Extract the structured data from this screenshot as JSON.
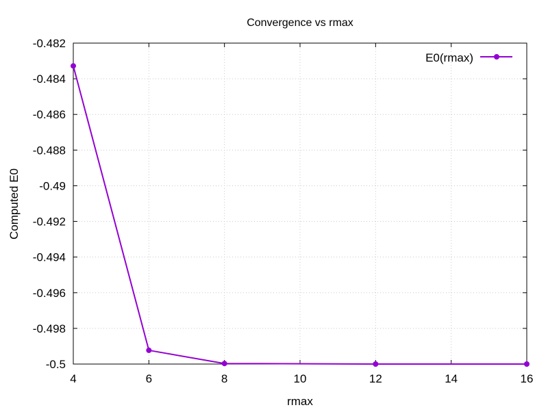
{
  "chart_data": {
    "type": "line",
    "title": "Convergence vs rmax",
    "xlabel": "rmax",
    "ylabel": "Computed E0",
    "xlim": [
      4,
      16
    ],
    "ylim": [
      -0.5,
      -0.482
    ],
    "x_ticks": [
      4,
      6,
      8,
      10,
      12,
      14,
      16
    ],
    "x_tick_labels": [
      "4",
      "6",
      "8",
      "10",
      "12",
      "14",
      "16"
    ],
    "y_ticks": [
      -0.5,
      -0.498,
      -0.496,
      -0.494,
      -0.492,
      -0.49,
      -0.488,
      -0.486,
      -0.484,
      -0.482
    ],
    "y_tick_labels": [
      "-0.5",
      "-0.498",
      "-0.496",
      "-0.494",
      "-0.492",
      "-0.49",
      "-0.488",
      "-0.486",
      "-0.484",
      "-0.482"
    ],
    "grid": true,
    "legend_position": "top-right",
    "series": [
      {
        "name": "E0(rmax)",
        "color": "#9400d3",
        "marker": "circle",
        "x": [
          4,
          6,
          8,
          12,
          16
        ],
        "y": [
          -0.48328,
          -0.49923,
          -0.49997,
          -0.5,
          -0.5
        ]
      }
    ]
  }
}
